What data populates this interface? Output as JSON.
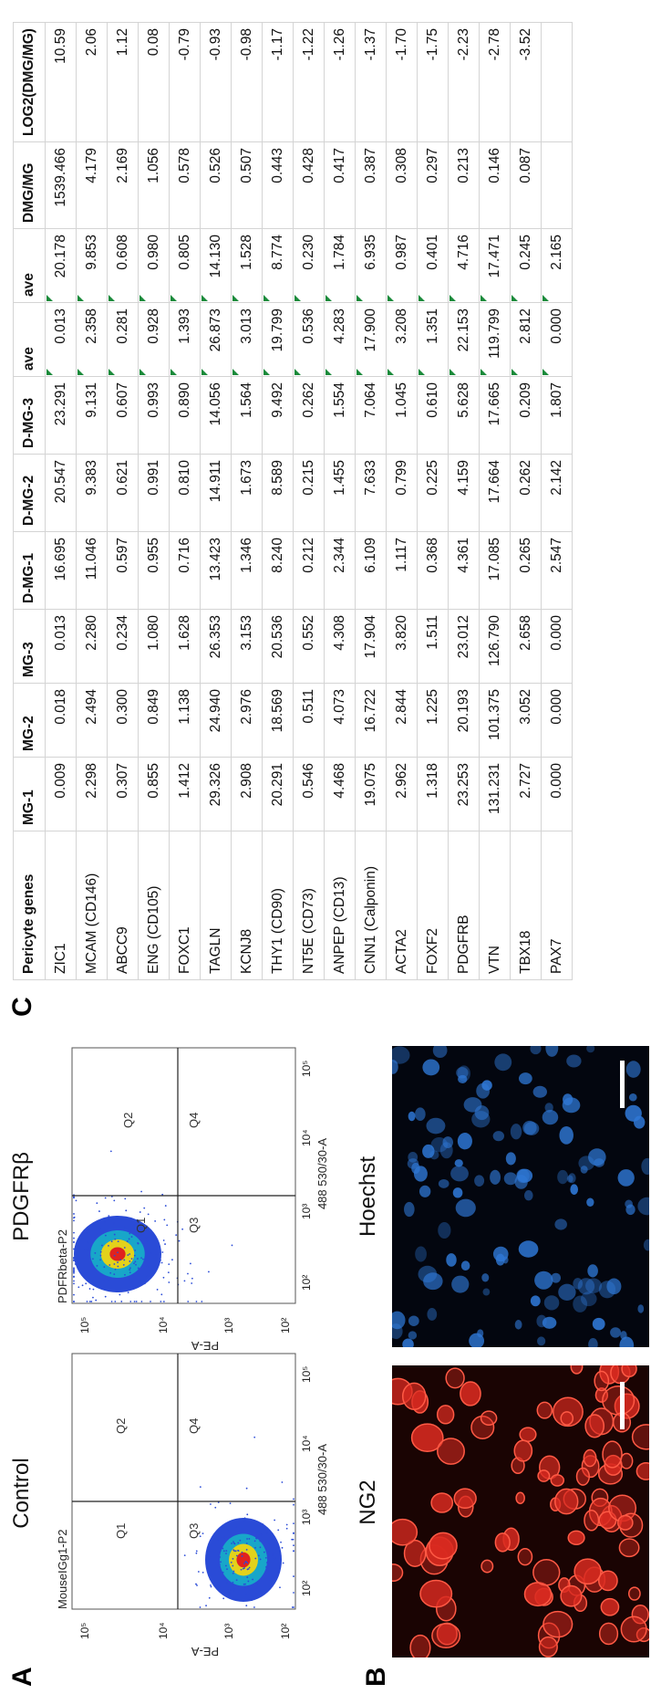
{
  "panels": {
    "a": "A",
    "b": "B",
    "c": "C"
  },
  "flow_control": {
    "title": "Control",
    "gate_label": "MouseIGg1-P2",
    "y_label": "PE-A",
    "x_label": "488 530/30-A",
    "quadrants": [
      "Q1",
      "Q2",
      "Q3",
      "Q4"
    ],
    "y_ticks": [
      "10⁵",
      "10⁴",
      "10³",
      "10²"
    ],
    "x_ticks": [
      "10²",
      "10³",
      "10⁴",
      "10⁵"
    ]
  },
  "flow_pdgfrb": {
    "title": "PDGFRβ",
    "gate_label": "PDFRbeta-P2",
    "y_label": "PE-A",
    "x_label": "488 530/30-A",
    "quadrants": [
      "Q1",
      "Q2",
      "Q3",
      "Q4"
    ],
    "y_ticks": [
      "10⁵",
      "10⁴",
      "10³",
      "10²"
    ],
    "x_ticks": [
      "10²",
      "10³",
      "10⁴",
      "10⁵"
    ]
  },
  "micrographs": {
    "ng2": {
      "label": "NG2",
      "color": "#d92a20"
    },
    "hoechst": {
      "label": "Hoechst",
      "color": "#2f78d6"
    }
  },
  "colors": {
    "density_low": "#2a4bd7",
    "density_mid": "#18a6c9",
    "density_high": "#e3d21b",
    "density_peak": "#e0221e",
    "triangle": "#1a8a3a"
  },
  "table": {
    "headers": [
      "Pericyte genes",
      "MG-1",
      "MG-2",
      "MG-3",
      "D-MG-1",
      "D-MG-2",
      "D-MG-3",
      "ave",
      "ave",
      "DMG/MG",
      "LOG2(DMG/MG)"
    ],
    "rows": [
      [
        "ZIC1",
        "0.009",
        "0.018",
        "0.013",
        "16.695",
        "20.547",
        "23.291",
        "0.013",
        "20.178",
        "1539.466",
        "10.59"
      ],
      [
        "MCAM (CD146)",
        "2.298",
        "2.494",
        "2.280",
        "11.046",
        "9.383",
        "9.131",
        "2.358",
        "9.853",
        "4.179",
        "2.06"
      ],
      [
        "ABCC9",
        "0.307",
        "0.300",
        "0.234",
        "0.597",
        "0.621",
        "0.607",
        "0.281",
        "0.608",
        "2.169",
        "1.12"
      ],
      [
        "ENG (CD105)",
        "0.855",
        "0.849",
        "1.080",
        "0.955",
        "0.991",
        "0.993",
        "0.928",
        "0.980",
        "1.056",
        "0.08"
      ],
      [
        "FOXC1",
        "1.412",
        "1.138",
        "1.628",
        "0.716",
        "0.810",
        "0.890",
        "1.393",
        "0.805",
        "0.578",
        "-0.79"
      ],
      [
        "TAGLN",
        "29.326",
        "24.940",
        "26.353",
        "13.423",
        "14.911",
        "14.056",
        "26.873",
        "14.130",
        "0.526",
        "-0.93"
      ],
      [
        "KCNJ8",
        "2.908",
        "2.976",
        "3.153",
        "1.346",
        "1.673",
        "1.564",
        "3.013",
        "1.528",
        "0.507",
        "-0.98"
      ],
      [
        "THY1 (CD90)",
        "20.291",
        "18.569",
        "20.536",
        "8.240",
        "8.589",
        "9.492",
        "19.799",
        "8.774",
        "0.443",
        "-1.17"
      ],
      [
        "NT5E (CD73)",
        "0.546",
        "0.511",
        "0.552",
        "0.212",
        "0.215",
        "0.262",
        "0.536",
        "0.230",
        "0.428",
        "-1.22"
      ],
      [
        "ANPEP (CD13)",
        "4.468",
        "4.073",
        "4.308",
        "2.344",
        "1.455",
        "1.554",
        "4.283",
        "1.784",
        "0.417",
        "-1.26"
      ],
      [
        "CNN1 (Calponin)",
        "19.075",
        "16.722",
        "17.904",
        "6.109",
        "7.633",
        "7.064",
        "17.900",
        "6.935",
        "0.387",
        "-1.37"
      ],
      [
        "ACTA2",
        "2.962",
        "2.844",
        "3.820",
        "1.117",
        "0.799",
        "1.045",
        "3.208",
        "0.987",
        "0.308",
        "-1.70"
      ],
      [
        "FOXF2",
        "1.318",
        "1.225",
        "1.511",
        "0.368",
        "0.225",
        "0.610",
        "1.351",
        "0.401",
        "0.297",
        "-1.75"
      ],
      [
        "PDGFRB",
        "23.253",
        "20.193",
        "23.012",
        "4.361",
        "4.159",
        "5.628",
        "22.153",
        "4.716",
        "0.213",
        "-2.23"
      ],
      [
        "VTN",
        "131.231",
        "101.375",
        "126.790",
        "17.085",
        "17.664",
        "17.665",
        "119.799",
        "17.471",
        "0.146",
        "-2.78"
      ],
      [
        "TBX18",
        "2.727",
        "3.052",
        "2.658",
        "0.265",
        "0.262",
        "0.209",
        "2.812",
        "0.245",
        "0.087",
        "-3.52"
      ],
      [
        "PAX7",
        "0.000",
        "0.000",
        "0.000",
        "2.547",
        "2.142",
        "1.807",
        "0.000",
        "2.165",
        "",
        ""
      ]
    ]
  }
}
